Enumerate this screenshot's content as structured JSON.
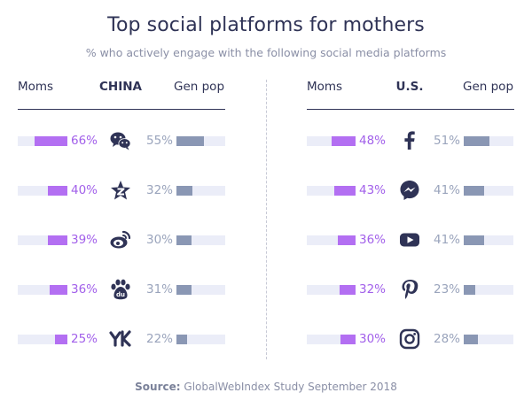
{
  "title": "Top social platforms for mothers",
  "subtitle": "% who actively engage with the following social media platforms",
  "source_label": "Source:",
  "source_text": "GlobalWebIndex Study September 2018",
  "colors": {
    "moms": "#b36ff2",
    "gen_pop": "#8a97b4",
    "track": "#ebedf8",
    "text": "#2f3356"
  },
  "chart_data": [
    {
      "type": "bar",
      "group": "CHINA",
      "left_header": "Moms",
      "right_header": "Gen pop",
      "categories": [
        "wechat-icon",
        "qzone-icon",
        "weibo-icon",
        "baidu-icon",
        "youku-icon"
      ],
      "series": [
        {
          "name": "Moms",
          "values": [
            66,
            40,
            39,
            36,
            25
          ],
          "labels": [
            "66%",
            "40%",
            "39%",
            "36%",
            "25%"
          ]
        },
        {
          "name": "Gen pop",
          "values": [
            55,
            32,
            30,
            31,
            22
          ],
          "labels": [
            "55%",
            "32%",
            "30%",
            "31%",
            "22%"
          ]
        }
      ]
    },
    {
      "type": "bar",
      "group": "U.S.",
      "left_header": "Moms",
      "right_header": "Gen pop",
      "categories": [
        "facebook-icon",
        "messenger-icon",
        "youtube-icon",
        "pinterest-icon",
        "instagram-icon"
      ],
      "series": [
        {
          "name": "Moms",
          "values": [
            48,
            43,
            36,
            32,
            30
          ],
          "labels": [
            "48%",
            "43%",
            "36%",
            "32%",
            "30%"
          ]
        },
        {
          "name": "Gen pop",
          "values": [
            51,
            41,
            41,
            23,
            28
          ],
          "labels": [
            "51%",
            "41%",
            "41%",
            "23%",
            "28%"
          ]
        }
      ]
    }
  ]
}
